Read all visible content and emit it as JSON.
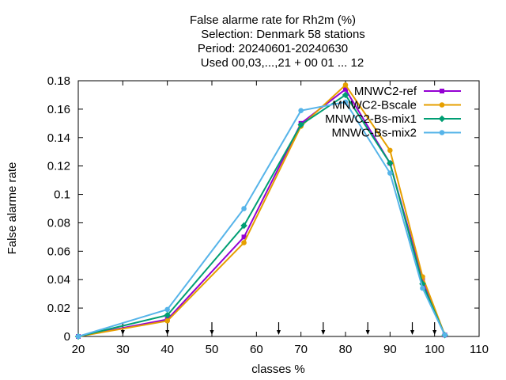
{
  "chart_data": {
    "type": "line",
    "title_lines": [
      "False alarme rate  for Rh2m (%)",
      "Selection: Denmark     58 stations",
      "Period: 20240601-20240630",
      "Used 00,03,...,21 + 00 01 ... 12"
    ],
    "xlabel": "classes %",
    "ylabel": "False alarme rate",
    "xlim": [
      20,
      110
    ],
    "ylim": [
      0,
      0.18
    ],
    "xticks": [
      20,
      30,
      40,
      50,
      60,
      70,
      80,
      90,
      100,
      110
    ],
    "xtick_labels": [
      "20",
      "30",
      "40",
      "50",
      "60",
      "70",
      "80",
      "90",
      "100",
      "110"
    ],
    "yticks": [
      0,
      0.02,
      0.04,
      0.06,
      0.08,
      0.1,
      0.12,
      0.14,
      0.16,
      0.18
    ],
    "ytick_labels": [
      "0",
      "0.02",
      "0.04",
      "0.06",
      "0.08",
      "0.1",
      "0.12",
      "0.14",
      "0.16",
      "0.18"
    ],
    "class_arrows_x": [
      30,
      40,
      50,
      65,
      75,
      85,
      95,
      100
    ],
    "legend_position": "top-right",
    "grid": false,
    "series": [
      {
        "name": "MNWC2-ref",
        "color": "#9400d3",
        "marker": "square",
        "x": [
          20,
          40,
          57.2,
          70,
          80,
          90,
          97.3,
          102.3
        ],
        "y": [
          0.0,
          0.012,
          0.07,
          0.15,
          0.174,
          0.122,
          0.04,
          0.001
        ]
      },
      {
        "name": "MNWC2-Bscale",
        "color": "#e69f00",
        "marker": "circle",
        "x": [
          20,
          40,
          57.2,
          70,
          80,
          90,
          97.3,
          102.3
        ],
        "y": [
          0.0,
          0.011,
          0.066,
          0.148,
          0.177,
          0.131,
          0.042,
          0.001
        ]
      },
      {
        "name": "MNWC2-Bs-mix1",
        "color": "#009e73",
        "marker": "cross",
        "x": [
          20,
          40,
          57.2,
          70,
          80,
          90,
          97.3,
          102.3
        ],
        "y": [
          0.0,
          0.015,
          0.078,
          0.149,
          0.17,
          0.122,
          0.037,
          0.001
        ]
      },
      {
        "name": "MNWC-Bs-mix2",
        "color": "#56b4e9",
        "marker": "circle",
        "x": [
          20,
          40,
          57.2,
          70,
          80,
          90,
          97.3,
          102.3
        ],
        "y": [
          0.0,
          0.019,
          0.09,
          0.159,
          0.165,
          0.115,
          0.034,
          0.001
        ]
      }
    ]
  }
}
